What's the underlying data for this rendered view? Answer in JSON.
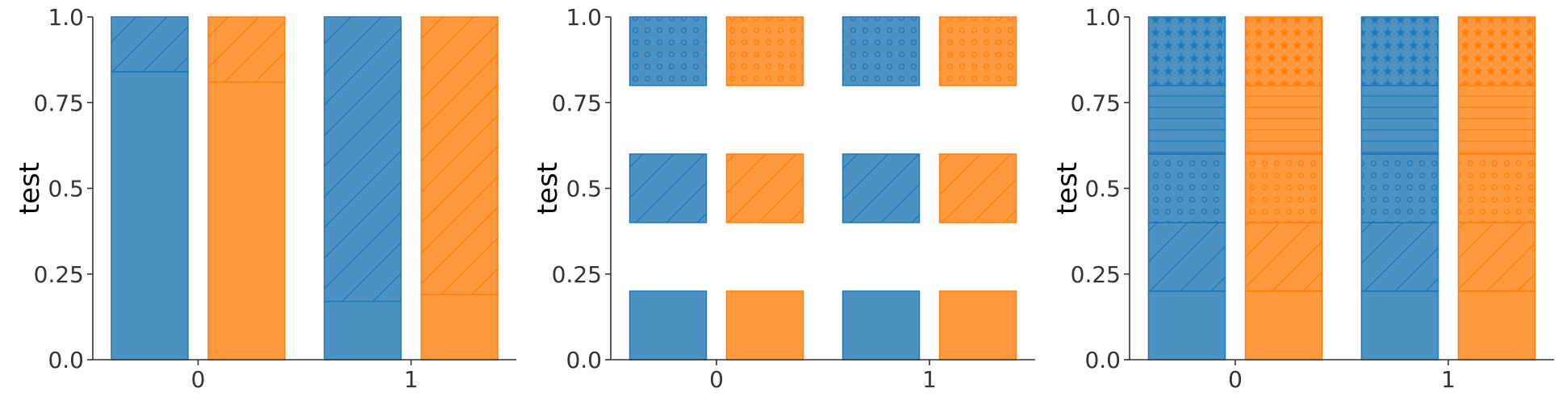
{
  "colors": {
    "blue": "#1f77b4",
    "orange": "#ff7f0e"
  },
  "chart_data": [
    {
      "type": "bar",
      "variant": "stacked-hatched",
      "ylabel": "test",
      "ylim": [
        0,
        1
      ],
      "xticks": [
        "0",
        "1"
      ],
      "yticks": [
        "0.0",
        "0.25",
        "0.5",
        "0.75",
        "1.0"
      ],
      "grid": false,
      "bars": [
        {
          "group": "0",
          "series": "blue",
          "segments": [
            {
              "bottom": 0,
              "top": 0.84,
              "hatch": "none"
            },
            {
              "bottom": 0.84,
              "top": 1.0,
              "hatch": "diagonal"
            }
          ]
        },
        {
          "group": "0",
          "series": "orange",
          "segments": [
            {
              "bottom": 0,
              "top": 0.81,
              "hatch": "none"
            },
            {
              "bottom": 0.81,
              "top": 1.0,
              "hatch": "diagonal"
            }
          ]
        },
        {
          "group": "1",
          "series": "blue",
          "segments": [
            {
              "bottom": 0,
              "top": 0.17,
              "hatch": "none"
            },
            {
              "bottom": 0.17,
              "top": 1.0,
              "hatch": "diagonal"
            }
          ]
        },
        {
          "group": "1",
          "series": "orange",
          "segments": [
            {
              "bottom": 0,
              "top": 0.19,
              "hatch": "none"
            },
            {
              "bottom": 0.19,
              "top": 1.0,
              "hatch": "diagonal"
            }
          ]
        }
      ]
    },
    {
      "type": "bar",
      "variant": "floating-hatched",
      "ylabel": "test",
      "ylim": [
        0,
        1
      ],
      "xticks": [
        "0",
        "1"
      ],
      "yticks": [
        "0.0",
        "0.25",
        "0.5",
        "0.75",
        "1.0"
      ],
      "grid": false,
      "bars": [
        {
          "group": "0",
          "series": "blue",
          "segments": [
            {
              "bottom": 0,
              "top": 0.2,
              "hatch": "none"
            },
            {
              "bottom": 0.4,
              "top": 0.6,
              "hatch": "diagonal"
            },
            {
              "bottom": 0.8,
              "top": 1.0,
              "hatch": "circles"
            }
          ]
        },
        {
          "group": "0",
          "series": "orange",
          "segments": [
            {
              "bottom": 0,
              "top": 0.2,
              "hatch": "none"
            },
            {
              "bottom": 0.4,
              "top": 0.6,
              "hatch": "diagonal"
            },
            {
              "bottom": 0.8,
              "top": 1.0,
              "hatch": "circles"
            }
          ]
        },
        {
          "group": "1",
          "series": "blue",
          "segments": [
            {
              "bottom": 0,
              "top": 0.2,
              "hatch": "none"
            },
            {
              "bottom": 0.4,
              "top": 0.6,
              "hatch": "diagonal"
            },
            {
              "bottom": 0.8,
              "top": 1.0,
              "hatch": "circles"
            }
          ]
        },
        {
          "group": "1",
          "series": "orange",
          "segments": [
            {
              "bottom": 0,
              "top": 0.2,
              "hatch": "none"
            },
            {
              "bottom": 0.4,
              "top": 0.6,
              "hatch": "diagonal"
            },
            {
              "bottom": 0.8,
              "top": 1.0,
              "hatch": "circles"
            }
          ]
        }
      ]
    },
    {
      "type": "bar",
      "variant": "stacked-hatched",
      "ylabel": "test",
      "ylim": [
        0,
        1
      ],
      "xticks": [
        "0",
        "1"
      ],
      "yticks": [
        "0.0",
        "0.25",
        "0.5",
        "0.75",
        "1.0"
      ],
      "grid": false,
      "bars": [
        {
          "group": "0",
          "series": "blue",
          "segments": [
            {
              "bottom": 0,
              "top": 0.2,
              "hatch": "none"
            },
            {
              "bottom": 0.2,
              "top": 0.4,
              "hatch": "diagonal"
            },
            {
              "bottom": 0.4,
              "top": 0.6,
              "hatch": "circles"
            },
            {
              "bottom": 0.6,
              "top": 0.8,
              "hatch": "horizontal"
            },
            {
              "bottom": 0.8,
              "top": 1.0,
              "hatch": "stars"
            }
          ]
        },
        {
          "group": "0",
          "series": "orange",
          "segments": [
            {
              "bottom": 0,
              "top": 0.2,
              "hatch": "none"
            },
            {
              "bottom": 0.2,
              "top": 0.4,
              "hatch": "diagonal"
            },
            {
              "bottom": 0.4,
              "top": 0.6,
              "hatch": "circles"
            },
            {
              "bottom": 0.6,
              "top": 0.8,
              "hatch": "horizontal"
            },
            {
              "bottom": 0.8,
              "top": 1.0,
              "hatch": "stars"
            }
          ]
        },
        {
          "group": "1",
          "series": "blue",
          "segments": [
            {
              "bottom": 0,
              "top": 0.2,
              "hatch": "none"
            },
            {
              "bottom": 0.2,
              "top": 0.4,
              "hatch": "diagonal"
            },
            {
              "bottom": 0.4,
              "top": 0.6,
              "hatch": "circles"
            },
            {
              "bottom": 0.6,
              "top": 0.8,
              "hatch": "horizontal"
            },
            {
              "bottom": 0.8,
              "top": 1.0,
              "hatch": "stars"
            }
          ]
        },
        {
          "group": "1",
          "series": "orange",
          "segments": [
            {
              "bottom": 0,
              "top": 0.2,
              "hatch": "none"
            },
            {
              "bottom": 0.2,
              "top": 0.4,
              "hatch": "diagonal"
            },
            {
              "bottom": 0.4,
              "top": 0.6,
              "hatch": "circles"
            },
            {
              "bottom": 0.6,
              "top": 0.8,
              "hatch": "horizontal"
            },
            {
              "bottom": 0.8,
              "top": 1.0,
              "hatch": "stars"
            }
          ]
        }
      ]
    }
  ]
}
